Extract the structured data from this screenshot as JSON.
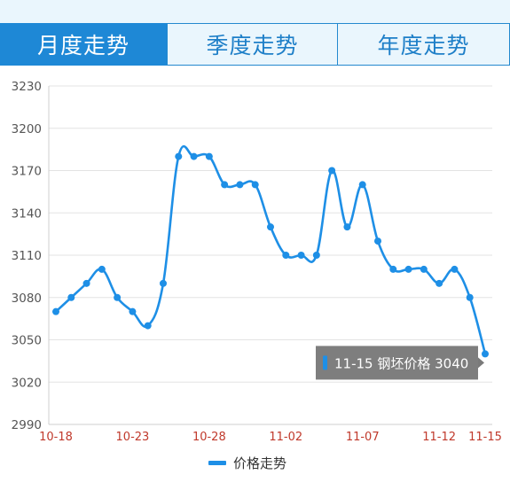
{
  "tabs": [
    {
      "label": "月度走势",
      "active": true
    },
    {
      "label": "季度走势",
      "active": false
    },
    {
      "label": "年度走势",
      "active": false
    }
  ],
  "colors": {
    "accent": "#1e88d6",
    "line": "#1e8fe6",
    "tab_bg": "#eaf6fd",
    "tick_x": "#c0392b",
    "tooltip_bg": "#7a7a7a"
  },
  "chart_data": {
    "type": "line",
    "ylim": [
      2990,
      3230
    ],
    "yticks": [
      3230,
      3200,
      3170,
      3140,
      3110,
      3080,
      3050,
      3020,
      2990
    ],
    "x_tick_labels": [
      "10-18",
      "10-23",
      "10-28",
      "11-02",
      "11-07",
      "11-12",
      "11-15"
    ],
    "grid": true,
    "series": [
      {
        "name": "价格走势",
        "x": [
          "10-18",
          "10-19",
          "10-20",
          "10-21",
          "10-22",
          "10-23",
          "10-24",
          "10-25",
          "10-26",
          "10-27",
          "10-28",
          "10-29",
          "10-30",
          "10-31",
          "11-01",
          "11-02",
          "11-03",
          "11-04",
          "11-05",
          "11-06",
          "11-07",
          "11-08",
          "11-09",
          "11-10",
          "11-11",
          "11-12",
          "11-13",
          "11-14",
          "11-15"
        ],
        "values": [
          3070,
          3080,
          3090,
          3100,
          3080,
          3070,
          3060,
          3090,
          3180,
          3180,
          3180,
          3160,
          3160,
          3160,
          3130,
          3110,
          3110,
          3110,
          3170,
          3130,
          3160,
          3120,
          3100,
          3100,
          3100,
          3090,
          3100,
          3080,
          3040
        ]
      }
    ],
    "legend": {
      "label": "价格走势",
      "position": "bottom-center"
    },
    "tooltip": {
      "date": "11-15",
      "label": "钢坯价格",
      "value": "3040"
    }
  }
}
